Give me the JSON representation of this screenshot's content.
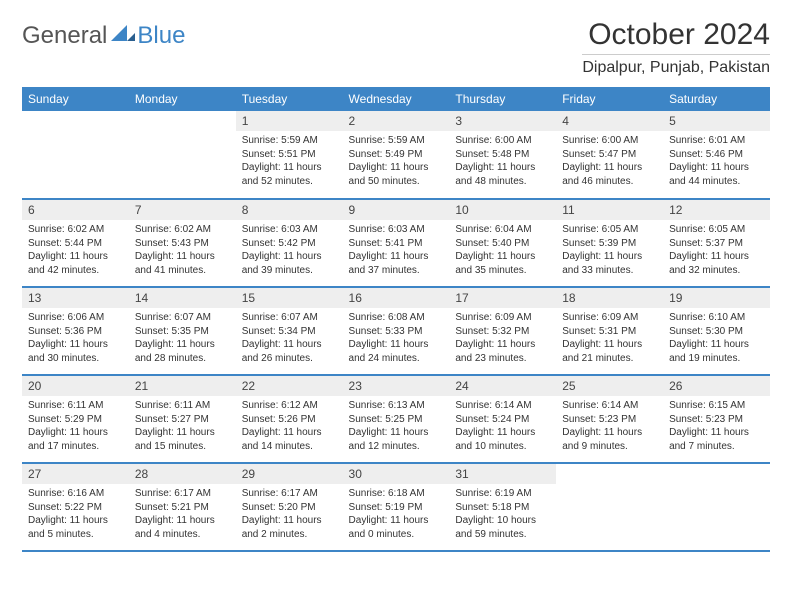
{
  "brand": {
    "part1": "General",
    "part2": "Blue"
  },
  "title": "October 2024",
  "location": "Dipalpur, Punjab, Pakistan",
  "colors": {
    "accent": "#3d85c6",
    "header_text": "#ffffff",
    "daynum_bg": "#eeeeee",
    "body_text": "#333333",
    "border_bottom": "#3d85c6"
  },
  "weekdays": [
    "Sunday",
    "Monday",
    "Tuesday",
    "Wednesday",
    "Thursday",
    "Friday",
    "Saturday"
  ],
  "weeks": [
    [
      null,
      null,
      {
        "n": "1",
        "sr": "5:59 AM",
        "ss": "5:51 PM",
        "dl": "11 hours and 52 minutes."
      },
      {
        "n": "2",
        "sr": "5:59 AM",
        "ss": "5:49 PM",
        "dl": "11 hours and 50 minutes."
      },
      {
        "n": "3",
        "sr": "6:00 AM",
        "ss": "5:48 PM",
        "dl": "11 hours and 48 minutes."
      },
      {
        "n": "4",
        "sr": "6:00 AM",
        "ss": "5:47 PM",
        "dl": "11 hours and 46 minutes."
      },
      {
        "n": "5",
        "sr": "6:01 AM",
        "ss": "5:46 PM",
        "dl": "11 hours and 44 minutes."
      }
    ],
    [
      {
        "n": "6",
        "sr": "6:02 AM",
        "ss": "5:44 PM",
        "dl": "11 hours and 42 minutes."
      },
      {
        "n": "7",
        "sr": "6:02 AM",
        "ss": "5:43 PM",
        "dl": "11 hours and 41 minutes."
      },
      {
        "n": "8",
        "sr": "6:03 AM",
        "ss": "5:42 PM",
        "dl": "11 hours and 39 minutes."
      },
      {
        "n": "9",
        "sr": "6:03 AM",
        "ss": "5:41 PM",
        "dl": "11 hours and 37 minutes."
      },
      {
        "n": "10",
        "sr": "6:04 AM",
        "ss": "5:40 PM",
        "dl": "11 hours and 35 minutes."
      },
      {
        "n": "11",
        "sr": "6:05 AM",
        "ss": "5:39 PM",
        "dl": "11 hours and 33 minutes."
      },
      {
        "n": "12",
        "sr": "6:05 AM",
        "ss": "5:37 PM",
        "dl": "11 hours and 32 minutes."
      }
    ],
    [
      {
        "n": "13",
        "sr": "6:06 AM",
        "ss": "5:36 PM",
        "dl": "11 hours and 30 minutes."
      },
      {
        "n": "14",
        "sr": "6:07 AM",
        "ss": "5:35 PM",
        "dl": "11 hours and 28 minutes."
      },
      {
        "n": "15",
        "sr": "6:07 AM",
        "ss": "5:34 PM",
        "dl": "11 hours and 26 minutes."
      },
      {
        "n": "16",
        "sr": "6:08 AM",
        "ss": "5:33 PM",
        "dl": "11 hours and 24 minutes."
      },
      {
        "n": "17",
        "sr": "6:09 AM",
        "ss": "5:32 PM",
        "dl": "11 hours and 23 minutes."
      },
      {
        "n": "18",
        "sr": "6:09 AM",
        "ss": "5:31 PM",
        "dl": "11 hours and 21 minutes."
      },
      {
        "n": "19",
        "sr": "6:10 AM",
        "ss": "5:30 PM",
        "dl": "11 hours and 19 minutes."
      }
    ],
    [
      {
        "n": "20",
        "sr": "6:11 AM",
        "ss": "5:29 PM",
        "dl": "11 hours and 17 minutes."
      },
      {
        "n": "21",
        "sr": "6:11 AM",
        "ss": "5:27 PM",
        "dl": "11 hours and 15 minutes."
      },
      {
        "n": "22",
        "sr": "6:12 AM",
        "ss": "5:26 PM",
        "dl": "11 hours and 14 minutes."
      },
      {
        "n": "23",
        "sr": "6:13 AM",
        "ss": "5:25 PM",
        "dl": "11 hours and 12 minutes."
      },
      {
        "n": "24",
        "sr": "6:14 AM",
        "ss": "5:24 PM",
        "dl": "11 hours and 10 minutes."
      },
      {
        "n": "25",
        "sr": "6:14 AM",
        "ss": "5:23 PM",
        "dl": "11 hours and 9 minutes."
      },
      {
        "n": "26",
        "sr": "6:15 AM",
        "ss": "5:23 PM",
        "dl": "11 hours and 7 minutes."
      }
    ],
    [
      {
        "n": "27",
        "sr": "6:16 AM",
        "ss": "5:22 PM",
        "dl": "11 hours and 5 minutes."
      },
      {
        "n": "28",
        "sr": "6:17 AM",
        "ss": "5:21 PM",
        "dl": "11 hours and 4 minutes."
      },
      {
        "n": "29",
        "sr": "6:17 AM",
        "ss": "5:20 PM",
        "dl": "11 hours and 2 minutes."
      },
      {
        "n": "30",
        "sr": "6:18 AM",
        "ss": "5:19 PM",
        "dl": "11 hours and 0 minutes."
      },
      {
        "n": "31",
        "sr": "6:19 AM",
        "ss": "5:18 PM",
        "dl": "10 hours and 59 minutes."
      },
      null,
      null
    ]
  ],
  "labels": {
    "sunrise": "Sunrise:",
    "sunset": "Sunset:",
    "daylight": "Daylight:"
  }
}
